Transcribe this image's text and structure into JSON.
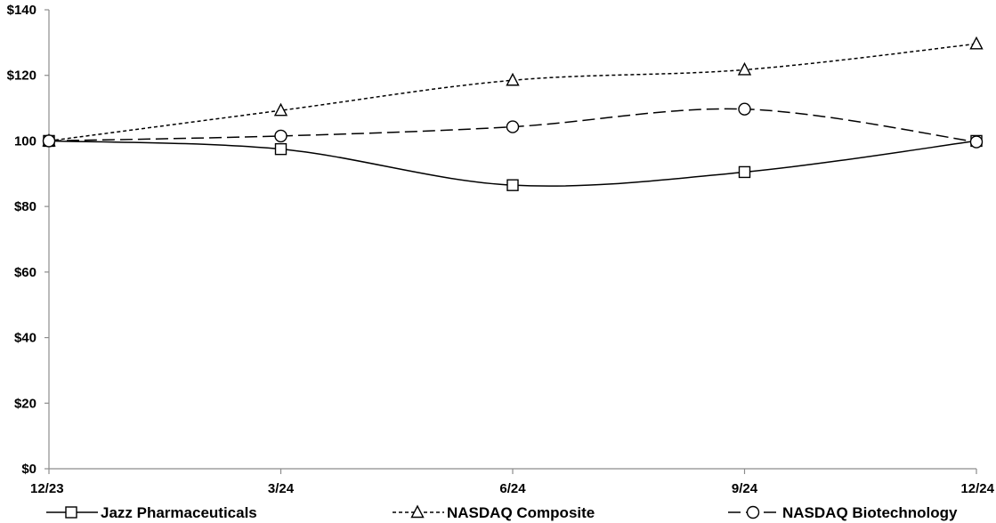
{
  "chart_data": {
    "type": "line",
    "title": "",
    "xlabel": "",
    "ylabel": "",
    "categories": [
      "12/23",
      "3/24",
      "6/24",
      "9/24",
      "12/24"
    ],
    "ylim": [
      0,
      140
    ],
    "yticks": [
      0,
      20,
      40,
      60,
      80,
      100,
      120,
      140
    ],
    "ytick_labels": [
      "$0",
      "$20",
      "$40",
      "$60",
      "$80",
      "100",
      "$120",
      "$140"
    ],
    "grid": false,
    "legend_position": "bottom",
    "series": [
      {
        "name": "Jazz Pharmaceuticals",
        "values": [
          100,
          97.5,
          86.5,
          90.5,
          100
        ],
        "marker": "square",
        "line_style": "solid",
        "color": "#000000"
      },
      {
        "name": "NASDAQ Composite",
        "values": [
          100,
          109.3,
          118.5,
          121.7,
          129.6
        ],
        "marker": "triangle",
        "line_style": "short-dash",
        "color": "#000000"
      },
      {
        "name": "NASDAQ Biotechnology",
        "values": [
          100,
          101.5,
          104.3,
          109.7,
          99.7
        ],
        "marker": "circle",
        "line_style": "long-dash",
        "color": "#000000"
      }
    ]
  }
}
